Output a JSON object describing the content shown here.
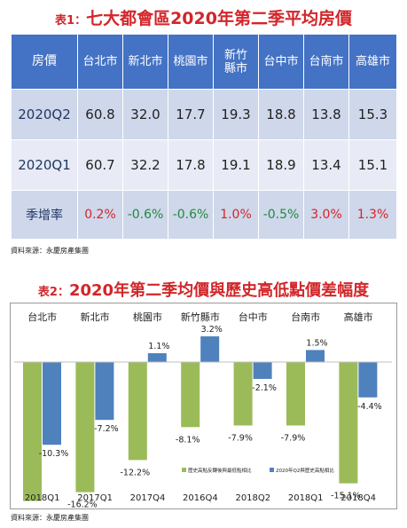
{
  "table1": {
    "title_label": "表1：",
    "title_text": "七大都會區2020年第二季平均房價",
    "row_header": "房價",
    "cities": [
      "台北市",
      "新北市",
      "桃園市",
      "新竹縣市",
      "台中市",
      "台南市",
      "高雄市"
    ],
    "rows": [
      {
        "label": "2020Q2",
        "values": [
          "60.8",
          "32.0",
          "17.7",
          "19.3",
          "18.8",
          "13.8",
          "15.3"
        ]
      },
      {
        "label": "2020Q1",
        "values": [
          "60.7",
          "32.2",
          "17.8",
          "19.1",
          "18.9",
          "13.4",
          "15.1"
        ]
      },
      {
        "label": "季增率",
        "values": [
          "0.2%",
          "-0.6%",
          "-0.6%",
          "1.0%",
          "-0.5%",
          "3.0%",
          "1.3%"
        ]
      }
    ],
    "source": "資料來源：永慶房產集團"
  },
  "table2": {
    "title_label": "表2：",
    "title_text": "2020年第二季均價與歷史高低點價差幅度",
    "source": "資料來源：永慶房產集團"
  },
  "chart_data": {
    "type": "bar",
    "categories": [
      "台北市",
      "新北市",
      "桃園市",
      "新竹縣市",
      "台中市",
      "台南市",
      "高雄市"
    ],
    "period_labels": [
      "2018Q1",
      "2017Q1",
      "2017Q4",
      "2016Q4",
      "2018Q2",
      "2018Q1",
      "2018Q4"
    ],
    "series": [
      {
        "name": "歷史高點反轉後與最低點相比",
        "values": [
          -17.3,
          -16.2,
          -12.2,
          -8.1,
          -7.9,
          -7.9,
          -15.1
        ],
        "labels": [
          "-17.3%",
          "-16.2%",
          "-12.2%",
          "-8.1%",
          "-7.9%",
          "-7.9%",
          "-15.1%"
        ],
        "color": "#9bbb59"
      },
      {
        "name": "2020年Q2與歷史高點相比",
        "values": [
          -10.3,
          -7.2,
          1.1,
          3.2,
          -2.1,
          1.5,
          -4.4
        ],
        "labels": [
          "-10.3%",
          "-7.2%",
          "1.1%",
          "3.2%",
          "-2.1%",
          "1.5%",
          "-4.4%"
        ],
        "color": "#4f81bd"
      }
    ],
    "legend_position": "bottom-right",
    "grid": false
  }
}
